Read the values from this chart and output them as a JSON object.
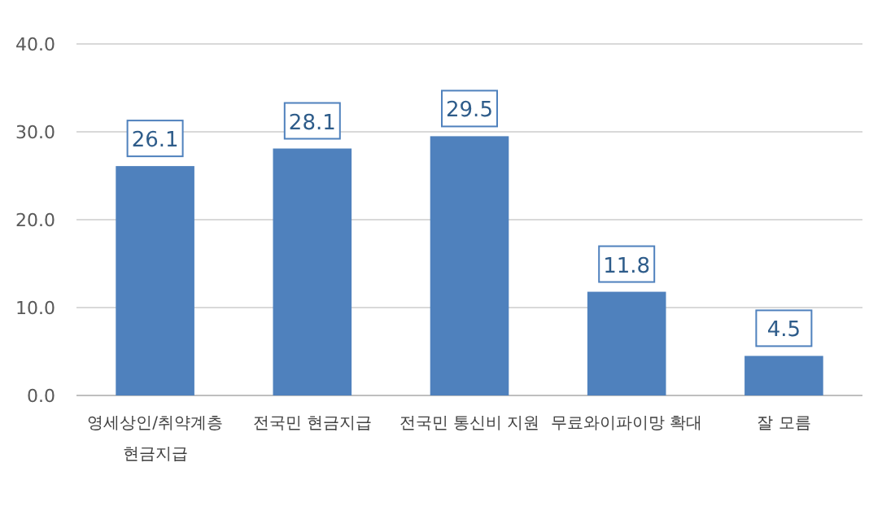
{
  "chart_data": {
    "type": "bar",
    "categories": [
      "영세상인/취약계층 현금지급",
      "전국민 현금지급",
      "전국민 통신비 지원",
      "무료와이파이망 확대",
      "잘 모름"
    ],
    "values": [
      26.1,
      28.1,
      29.5,
      11.8,
      4.5
    ],
    "color": "#4f81bd",
    "ylim": [
      0,
      40
    ],
    "yticks": [
      {
        "value": 0,
        "label": "0.0"
      },
      {
        "value": 10,
        "label": "10.0"
      },
      {
        "value": 20,
        "label": "20.0"
      },
      {
        "value": 30,
        "label": "30.0"
      },
      {
        "value": 40,
        "label": "40.0"
      }
    ],
    "grid": "y",
    "value_labels": [
      "26.1",
      "28.1",
      "29.5",
      "11.8",
      "4.5"
    ]
  }
}
